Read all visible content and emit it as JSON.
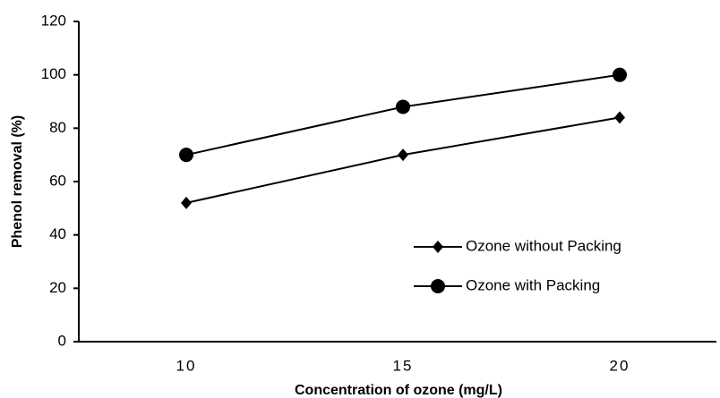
{
  "chart_data": {
    "type": "line",
    "xlabel": "Concentration of ozone (mg/L)",
    "ylabel": "Phenol removal (%)",
    "categories": [
      "10",
      "15",
      "20"
    ],
    "series": [
      {
        "name": "Ozone without Packing",
        "color": "#000000",
        "marker": "diamond",
        "values": [
          52,
          70,
          84
        ]
      },
      {
        "name": "Ozone with Packing",
        "color": "#000000",
        "marker": "circle",
        "values": [
          70,
          88,
          100
        ]
      }
    ],
    "ylim": [
      0,
      120
    ],
    "yticks": [
      0,
      20,
      40,
      60,
      80,
      100,
      120
    ],
    "grid": false,
    "legend": "lower right"
  }
}
